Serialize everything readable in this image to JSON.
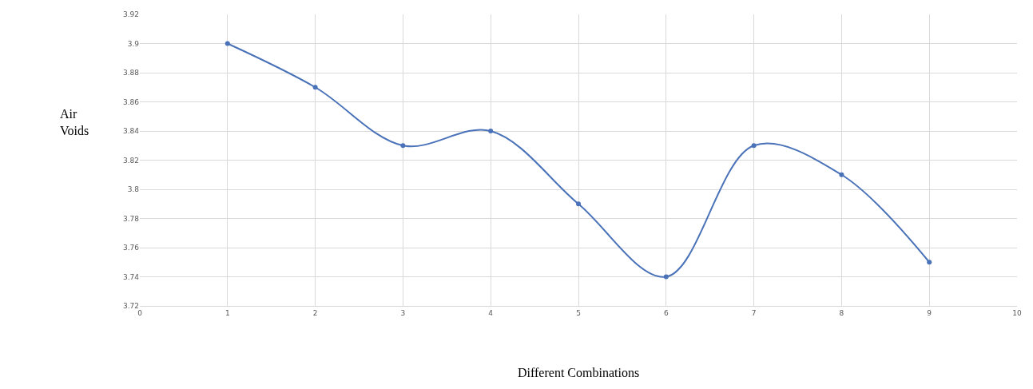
{
  "chart_data": {
    "type": "line",
    "xlabel": "Different Combinations",
    "ylabel": "Air Voids",
    "x": [
      1,
      2,
      3,
      4,
      5,
      6,
      7,
      8,
      9
    ],
    "values": [
      3.9,
      3.87,
      3.83,
      3.84,
      3.79,
      3.74,
      3.83,
      3.81,
      3.75
    ],
    "color": "#4a72b8",
    "marker": "circle",
    "line_style": "solid",
    "grid": true,
    "legend": false,
    "xlim": [
      0,
      10
    ],
    "xticks": [
      0,
      1,
      2,
      3,
      4,
      5,
      6,
      7,
      8,
      9,
      10
    ],
    "ylim": [
      3.72,
      3.92
    ],
    "yticks": [
      3.72,
      3.74,
      3.76,
      3.78,
      3.8,
      3.82,
      3.84,
      3.86,
      3.88,
      3.9,
      3.92
    ]
  }
}
